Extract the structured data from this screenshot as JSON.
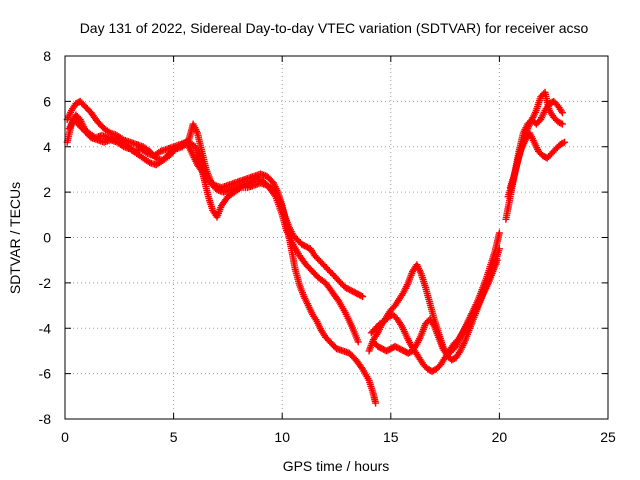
{
  "chart_data": {
    "type": "scatter",
    "title": "Day 131 of 2022, Sidereal Day-to-day VTEC variation (SDTVAR) for receiver acso",
    "xlabel": "GPS time / hours",
    "ylabel": "SDTVAR / TECUs",
    "xlim": [
      0,
      25
    ],
    "ylim": [
      -8,
      8
    ],
    "xticks": [
      0,
      5,
      10,
      15,
      20,
      25
    ],
    "yticks": [
      -8,
      -6,
      -4,
      -2,
      0,
      2,
      4,
      6,
      8
    ],
    "grid": true,
    "marker": "+",
    "color": "#ff0000",
    "series": [
      {
        "x": [
          0.1,
          0.3,
          0.5,
          0.7,
          0.9,
          1.1,
          1.4,
          1.7,
          2.0,
          2.3,
          2.6,
          2.9,
          3.2,
          3.5,
          3.8,
          4.1,
          4.4,
          4.7,
          5.0,
          5.3,
          5.6,
          5.9,
          6.1,
          6.4,
          6.7,
          7.0,
          7.3,
          7.6,
          7.9,
          8.2,
          8.5,
          8.8,
          9.1,
          9.4,
          9.7,
          10.0,
          10.2,
          10.5,
          10.8,
          11.1,
          11.4,
          11.7,
          12.0,
          12.3,
          12.6,
          12.9,
          13.2,
          13.5
        ],
        "y": [
          4.2,
          5.0,
          5.4,
          5.2,
          4.8,
          4.6,
          4.4,
          4.5,
          4.4,
          4.3,
          4.2,
          4.0,
          3.8,
          3.9,
          3.7,
          3.6,
          3.8,
          3.9,
          4.0,
          4.1,
          4.2,
          3.6,
          3.2,
          2.8,
          2.4,
          2.1,
          2.0,
          2.1,
          2.2,
          2.3,
          2.4,
          2.6,
          2.5,
          2.2,
          1.8,
          1.0,
          0.3,
          -0.3,
          -0.8,
          -1.2,
          -1.5,
          -1.8,
          -2.0,
          -2.4,
          -2.8,
          -3.3,
          -3.9,
          -4.6
        ]
      },
      {
        "x": [
          0.1,
          0.3,
          0.5,
          0.7,
          0.9,
          1.2,
          1.5,
          1.8,
          2.1,
          2.4,
          2.7,
          3.0,
          3.3,
          3.6,
          3.9,
          4.2,
          4.5,
          4.8,
          5.1,
          5.4,
          5.7,
          5.9,
          6.1,
          6.3,
          6.5,
          6.7,
          6.9,
          7.2,
          7.5,
          7.8,
          8.1,
          8.4,
          8.7,
          9.0,
          9.3,
          9.6,
          9.8,
          10.0,
          10.2,
          10.4,
          10.6,
          10.8,
          11.0,
          11.2,
          11.4,
          11.6,
          11.8,
          12.0,
          12.2,
          12.5,
          12.8,
          13.1,
          13.4,
          13.7,
          14.0,
          14.2,
          14.3
        ],
        "y": [
          5.2,
          5.6,
          5.9,
          6.0,
          5.8,
          5.5,
          5.1,
          4.8,
          4.6,
          4.5,
          4.3,
          4.2,
          4.1,
          4.0,
          3.8,
          3.5,
          3.4,
          3.6,
          3.9,
          4.1,
          4.3,
          5.0,
          4.6,
          3.8,
          3.0,
          2.5,
          2.3,
          2.2,
          2.3,
          2.4,
          2.5,
          2.6,
          2.7,
          2.8,
          2.7,
          2.4,
          2.0,
          1.4,
          0.6,
          -0.4,
          -1.4,
          -2.1,
          -2.6,
          -3.0,
          -3.4,
          -3.7,
          -4.1,
          -4.4,
          -4.6,
          -4.9,
          -5.0,
          -5.1,
          -5.4,
          -5.8,
          -6.3,
          -6.9,
          -7.3
        ]
      },
      {
        "x": [
          0.2,
          0.4,
          0.6,
          0.9,
          1.2,
          1.5,
          1.8,
          2.1,
          2.4,
          2.7,
          3.0,
          3.3,
          3.6,
          3.9,
          4.2,
          4.5,
          4.8,
          5.1,
          5.4,
          5.7,
          6.0,
          6.2,
          6.4,
          6.6,
          6.8,
          7.0,
          7.2,
          7.5,
          7.8,
          8.1,
          8.4,
          8.7,
          9.0,
          9.3,
          9.6,
          9.9,
          10.1,
          10.3,
          10.5,
          10.7,
          10.9,
          11.1,
          11.3,
          11.5,
          11.7,
          11.9,
          12.1,
          12.3,
          12.5,
          12.7,
          12.9,
          13.1,
          13.3,
          13.5,
          13.7
        ],
        "y": [
          4.8,
          5.2,
          5.0,
          4.7,
          4.4,
          4.3,
          4.2,
          4.3,
          4.2,
          4.0,
          3.9,
          3.7,
          3.5,
          3.3,
          3.2,
          3.4,
          3.7,
          3.9,
          4.0,
          4.2,
          4.0,
          3.4,
          2.6,
          1.8,
          1.2,
          0.9,
          1.4,
          1.8,
          2.0,
          2.2,
          2.2,
          2.3,
          2.4,
          2.3,
          2.1,
          1.6,
          1.0,
          0.5,
          0.1,
          -0.1,
          -0.3,
          -0.4,
          -0.5,
          -0.8,
          -1.0,
          -1.2,
          -1.4,
          -1.6,
          -1.8,
          -2.0,
          -2.2,
          -2.3,
          -2.4,
          -2.5,
          -2.6
        ]
      },
      {
        "x": [
          14.0,
          14.2,
          14.4,
          14.6,
          14.8,
          15.0,
          15.2,
          15.4,
          15.6,
          15.8,
          16.0,
          16.2,
          16.4,
          16.6,
          16.8,
          17.0,
          17.2,
          17.4,
          17.6,
          17.8,
          18.0,
          18.2,
          18.4,
          18.6,
          18.8,
          19.0,
          19.2,
          19.4,
          19.6,
          19.8,
          20.0
        ],
        "y": [
          -5.0,
          -4.5,
          -4.2,
          -3.8,
          -3.5,
          -3.2,
          -3.0,
          -2.7,
          -2.4,
          -2.0,
          -1.5,
          -1.2,
          -1.6,
          -2.2,
          -2.9,
          -3.6,
          -4.2,
          -4.8,
          -5.2,
          -5.0,
          -4.8,
          -4.4,
          -4.0,
          -3.6,
          -3.2,
          -2.8,
          -2.3,
          -1.8,
          -1.2,
          -0.6,
          0.2
        ]
      },
      {
        "x": [
          14.1,
          14.3,
          14.5,
          14.7,
          14.9,
          15.1,
          15.3,
          15.5,
          15.7,
          15.9,
          16.1,
          16.3,
          16.5,
          16.7,
          16.9,
          17.1,
          17.3,
          17.5,
          17.7,
          17.9,
          18.1,
          18.3,
          18.5,
          18.7,
          18.9,
          19.1,
          19.3,
          19.5,
          19.7,
          19.9
        ],
        "y": [
          -4.2,
          -4.0,
          -3.8,
          -3.7,
          -3.5,
          -3.4,
          -3.6,
          -3.9,
          -4.3,
          -4.7,
          -5.0,
          -5.3,
          -5.6,
          -5.8,
          -5.9,
          -5.8,
          -5.6,
          -5.3,
          -5.0,
          -4.7,
          -4.5,
          -4.2,
          -3.9,
          -3.6,
          -3.2,
          -2.8,
          -2.4,
          -2.0,
          -1.5,
          -1.0
        ]
      },
      {
        "x": [
          14.2,
          14.4,
          14.6,
          14.8,
          15.0,
          15.2,
          15.4,
          15.6,
          15.8,
          16.0,
          16.2,
          16.4,
          16.6,
          16.8,
          17.0,
          17.2,
          17.4,
          17.6,
          17.8,
          18.0,
          18.2,
          18.4,
          18.6,
          18.8,
          19.0,
          19.2,
          19.4,
          19.6,
          19.8,
          20.0
        ],
        "y": [
          -4.6,
          -4.8,
          -4.9,
          -5.0,
          -4.9,
          -4.8,
          -4.9,
          -5.0,
          -5.1,
          -5.0,
          -4.7,
          -4.3,
          -3.8,
          -3.6,
          -3.9,
          -4.4,
          -4.9,
          -5.2,
          -5.4,
          -5.3,
          -5.0,
          -4.6,
          -4.1,
          -3.6,
          -3.1,
          -2.6,
          -2.1,
          -1.6,
          -1.1,
          -0.5
        ]
      },
      {
        "x": [
          20.3,
          20.5,
          20.7,
          20.9,
          21.1,
          21.3,
          21.5,
          21.7,
          21.9,
          22.1,
          22.3,
          22.5,
          22.7,
          22.9
        ],
        "y": [
          0.8,
          1.8,
          2.8,
          3.8,
          4.6,
          5.0,
          5.2,
          5.6,
          6.2,
          6.4,
          5.6,
          5.3,
          5.1,
          5.0
        ]
      },
      {
        "x": [
          20.4,
          20.6,
          20.8,
          21.0,
          21.2,
          21.4,
          21.6,
          21.8,
          22.0,
          22.2,
          22.4,
          22.6,
          22.8,
          23.0
        ],
        "y": [
          1.8,
          2.4,
          3.2,
          3.9,
          4.3,
          4.6,
          4.2,
          3.8,
          3.6,
          3.5,
          3.7,
          3.9,
          4.1,
          4.2
        ]
      },
      {
        "x": [
          20.5,
          20.7,
          20.9,
          21.1,
          21.3,
          21.5,
          21.7,
          21.9,
          22.1,
          22.3,
          22.5,
          22.7,
          22.9
        ],
        "y": [
          2.2,
          2.8,
          3.6,
          4.2,
          4.8,
          5.2,
          5.0,
          5.2,
          5.6,
          5.9,
          6.0,
          5.8,
          5.5
        ]
      }
    ]
  }
}
